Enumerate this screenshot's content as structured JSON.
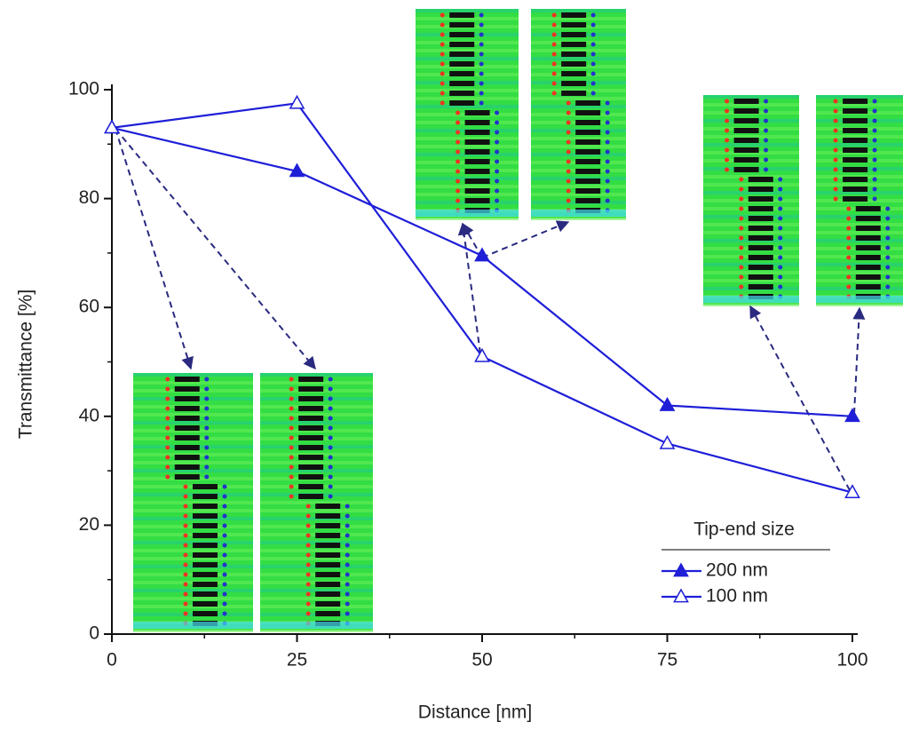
{
  "chart_data": {
    "type": "line",
    "x_label": "Distance [nm]",
    "y_label": "Transmittance [%]",
    "x": [
      0,
      25,
      50,
      75,
      100
    ],
    "series": [
      {
        "name": "200 nm",
        "color": "#1f1fd8",
        "marker_fill": "#1f1fd8",
        "values": [
          93,
          85,
          69.5,
          42,
          40
        ]
      },
      {
        "name": "100 nm",
        "color": "#1f1fd8",
        "marker_fill": "#ffffff",
        "values": [
          93,
          97.5,
          51,
          35,
          26
        ]
      }
    ],
    "legend_title": "Tip-end size",
    "xlim": [
      0,
      100
    ],
    "xticks": [
      0,
      25,
      50,
      75,
      100
    ],
    "ylim": [
      0,
      100
    ],
    "yticks": [
      0,
      20,
      40,
      60,
      80,
      100
    ],
    "grid": false
  }
}
